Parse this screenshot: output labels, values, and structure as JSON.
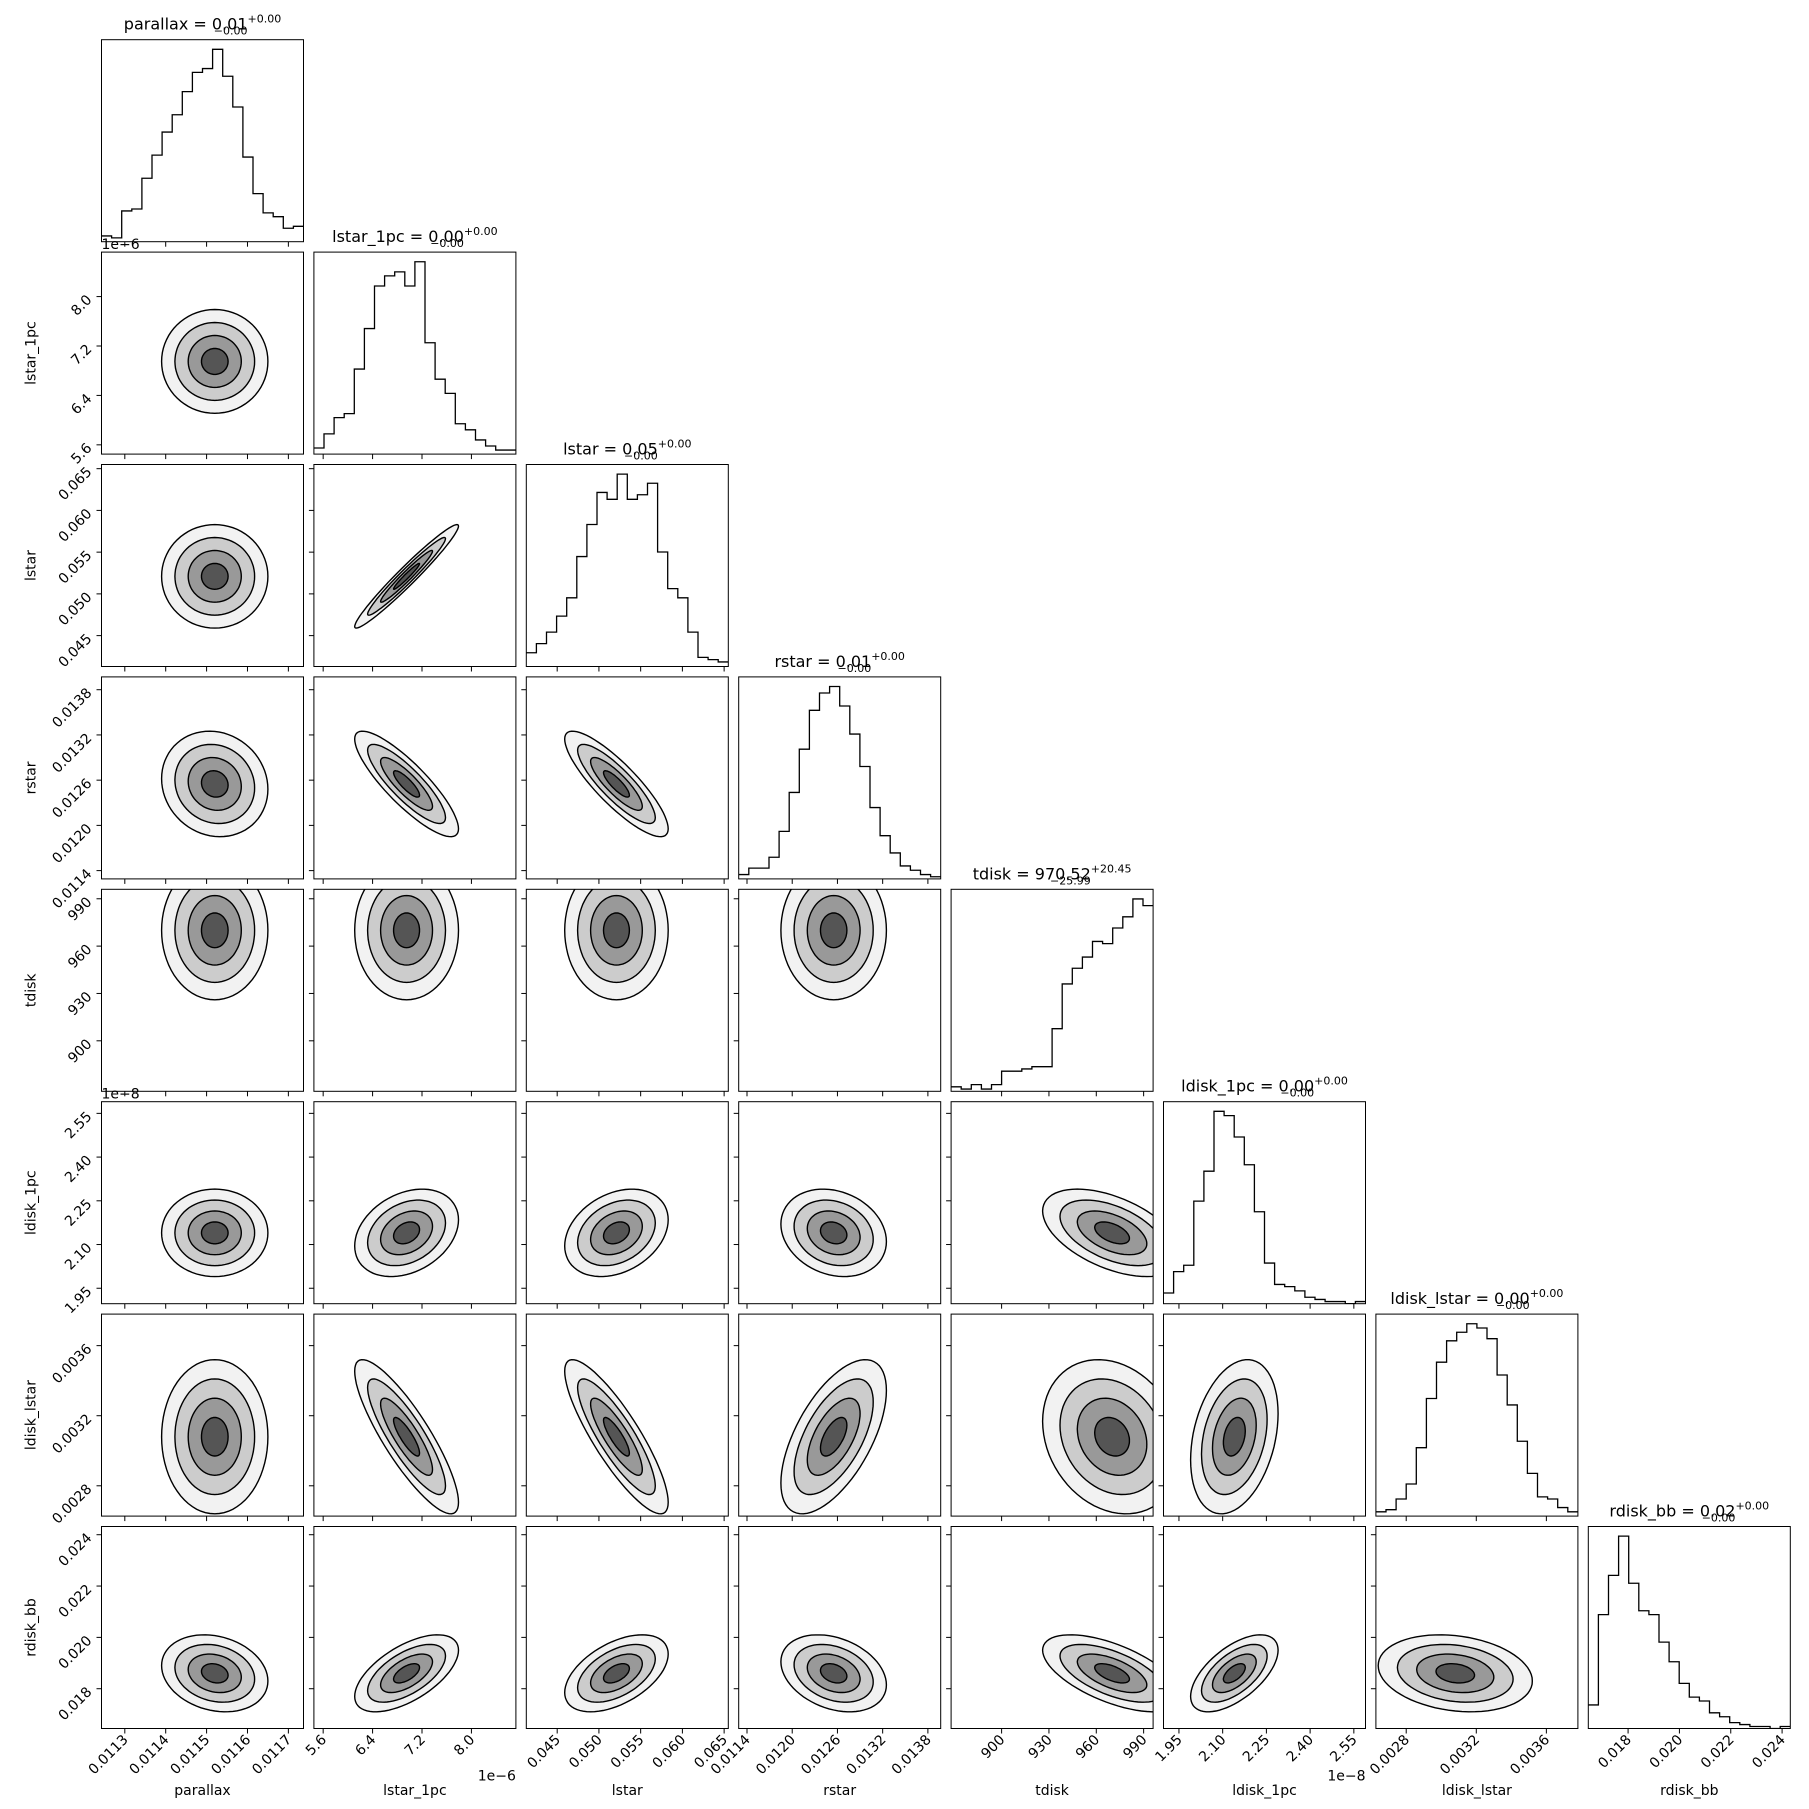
{
  "chart_data": {
    "type": "corner",
    "line_color": "#000000",
    "contour_fills": [
      "#f2f2f2",
      "#cccccc",
      "#999999",
      "#555555"
    ],
    "levels": [
      2,
      1.5,
      1,
      0.5
    ],
    "variables": [
      {
        "name": "parallax",
        "title": "parallax = 0.01",
        "title_sup": "+0.00",
        "title_sub": "−0.00",
        "lim": [
          0.011243,
          0.011737
        ],
        "ticks": [
          0.0113,
          0.0114,
          0.0115,
          0.0116,
          0.0117
        ],
        "mean": 0.01152,
        "sd": 6.5e-05,
        "hist": [
          3,
          2,
          16,
          17,
          33,
          45,
          57,
          66,
          78,
          88,
          90,
          100,
          86,
          70,
          44,
          25,
          15,
          13,
          7,
          8
        ]
      },
      {
        "name": "lstar_1pc",
        "title": "lstar_1pc = 0.00",
        "title_sup": "+0.00",
        "title_sub": "−0.00",
        "offset": "1e−6",
        "lim": [
          5.45,
          8.72
        ],
        "ticks": [
          5.6,
          6.4,
          7.2,
          {
            "value": 8,
            "label": "8.0"
          }
        ],
        "mean": 6.95,
        "sd": 0.42,
        "hist": [
          3,
          10,
          18,
          20,
          42,
          62,
          83,
          88,
          90,
          83,
          95,
          55,
          37,
          30,
          15,
          12,
          7,
          4,
          2,
          2
        ]
      },
      {
        "name": "lstar",
        "title": "lstar = 0.05",
        "title_sup": "+0.00",
        "title_sub": "−0.00",
        "lim": [
          0.0413,
          0.0655
        ],
        "ticks": [
          0.045,
          {
            "value": 0.05,
            "label": "0.050"
          },
          0.055,
          {
            "value": 0.06,
            "label": "0.060"
          },
          0.065
        ],
        "mean": 0.0521,
        "sd": 0.0031,
        "hist": [
          6,
          10,
          15,
          22,
          30,
          48,
          62,
          76,
          73,
          84,
          73,
          75,
          80,
          50,
          34,
          30,
          15,
          4,
          3,
          2
        ]
      },
      {
        "name": "rstar",
        "title": "rstar = 0.01",
        "title_sup": "+0.00",
        "title_sub": "−0.00",
        "lim": [
          0.01129,
          0.01397
        ],
        "ticks": [
          0.0114,
          {
            "value": 0.012,
            "label": "0.0120"
          },
          0.0126,
          0.0132,
          0.0138
        ],
        "mean": 0.01255,
        "sd": 0.00035,
        "hist": [
          2,
          5,
          5,
          10,
          22,
          40,
          60,
          78,
          86,
          89,
          80,
          67,
          52,
          33,
          20,
          12,
          6,
          4,
          2,
          1
        ]
      },
      {
        "name": "tdisk",
        "title": "tdisk = 970.52",
        "title_sup": "+20.45",
        "title_sub": "−25.99",
        "lim": [
          868,
          996
        ],
        "ticks": [
          900,
          930,
          960,
          990
        ],
        "mean": 970,
        "sd": 22,
        "hist": [
          2,
          1,
          3,
          1,
          3,
          9,
          9,
          10,
          11,
          11,
          28,
          48,
          55,
          60,
          67,
          66,
          73,
          78,
          86,
          83
        ]
      },
      {
        "name": "ldisk_1pc",
        "title": "ldisk_1pc = 0.00",
        "title_sup": "+0.00",
        "title_sub": "−0.00",
        "offset": "1e−8",
        "lim": [
          1.897,
          2.59
        ],
        "ticks": [
          1.95,
          {
            "value": 2.1,
            "label": "2.10"
          },
          2.25,
          {
            "value": 2.4,
            "label": "2.40"
          },
          2.55
        ],
        "mean": 2.14,
        "sd": 0.075,
        "hist": [
          5,
          15,
          18,
          48,
          62,
          90,
          88,
          78,
          65,
          43,
          19,
          9,
          8,
          6,
          3,
          2,
          1,
          1,
          0,
          1
        ]
      },
      {
        "name": "ldisk_lstar",
        "title": "ldisk_lstar = 0.00",
        "title_sup": "+0.00",
        "title_sub": "−0.00",
        "lim": [
          0.002627,
          0.00378
        ],
        "ticks": [
          0.0028,
          0.0032,
          0.0036
        ],
        "mean": 0.00308,
        "sd": 0.00022,
        "hist": [
          2,
          3,
          8,
          15,
          32,
          55,
          72,
          82,
          86,
          90,
          88,
          83,
          66,
          52,
          35,
          20,
          9,
          8,
          4,
          2
        ]
      },
      {
        "name": "rdisk_bb",
        "title": "rdisk_bb = 0.02",
        "title_sup": "+0.00",
        "title_sub": "−0.00",
        "lim": [
          0.01645,
          0.02432
        ],
        "ticks": [
          0.018,
          {
            "value": 0.02,
            "label": "0.020"
          },
          0.022,
          0.024
        ],
        "mean": 0.0186,
        "sd": 0.00075,
        "hist": [
          12,
          58,
          78,
          98,
          74,
          60,
          58,
          44,
          34,
          23,
          16,
          14,
          8,
          6,
          3,
          2,
          1,
          1,
          0,
          1
        ]
      }
    ],
    "correlations": [
      [
        0.0
      ],
      [
        0.0,
        0.97
      ],
      [
        -0.1,
        -0.85,
        -0.85
      ],
      [
        0.0,
        0.0,
        0.0,
        0.0
      ],
      [
        0.0,
        0.3,
        0.3,
        -0.2,
        -0.5
      ],
      [
        0.0,
        -0.85,
        -0.85,
        0.6,
        -0.2,
        0.3
      ],
      [
        -0.2,
        0.6,
        0.5,
        -0.3,
        -0.6,
        0.6,
        -0.2
      ]
    ]
  }
}
